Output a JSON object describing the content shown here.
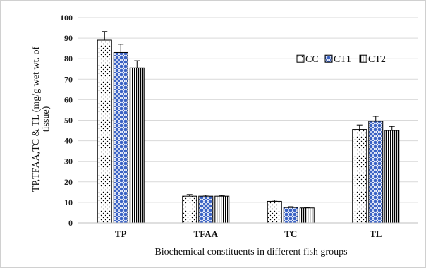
{
  "chart_data": {
    "type": "bar",
    "categories": [
      "TP",
      "TFAA",
      "TC",
      "TL"
    ],
    "series": [
      {
        "name": "CC",
        "values": [
          89,
          13,
          10.5,
          45.5
        ],
        "errors": [
          4.2,
          0.8,
          0.6,
          2.2
        ],
        "pattern": "dots"
      },
      {
        "name": "CT1",
        "values": [
          83,
          13,
          7.5,
          49.5
        ],
        "errors": [
          4.0,
          0.5,
          0.4,
          2.4
        ],
        "pattern": "circles"
      },
      {
        "name": "CT2",
        "values": [
          75.5,
          13,
          7.3,
          45
        ],
        "errors": [
          3.5,
          0.4,
          0.3,
          2.0
        ],
        "pattern": "vlines"
      }
    ],
    "ylim": [
      0,
      100
    ],
    "yticks": [
      0,
      10,
      20,
      30,
      40,
      50,
      60,
      70,
      80,
      90,
      100
    ],
    "xlabel": "Biochemical constituents in different fish groups",
    "ylabel_lines": [
      "TP,TFAA,TC  & TL  (mg/g wet wt. of",
      "tissue)"
    ],
    "grid": true,
    "legend_position": "top-right",
    "colors": {
      "dots": "#000000",
      "circles": "#3a62c4",
      "vlines": "#000000",
      "grid": "#d9d9d9"
    }
  }
}
